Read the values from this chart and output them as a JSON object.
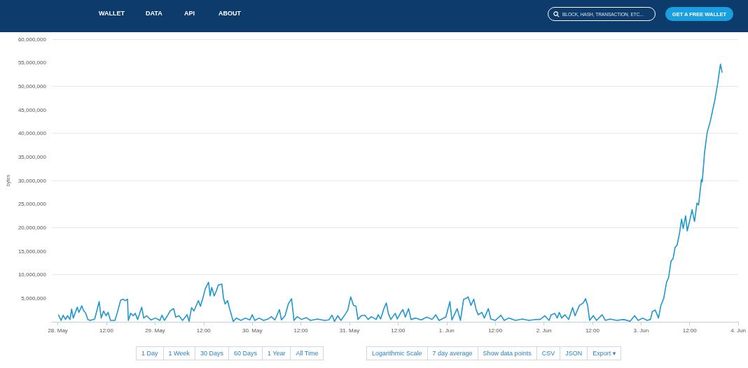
{
  "chart_data": {
    "type": "line",
    "ylabel": "bytes",
    "x": [
      "--05-28T00:12",
      "--05-28T00:48",
      "--05-28T01:18",
      "--05-28T01:54",
      "--05-28T02:24",
      "--05-28T03:00",
      "--05-28T03:24",
      "--05-28T03:48",
      "--05-28T04:48",
      "--05-28T05:12",
      "--05-28T05:54",
      "--05-28T06:18",
      "--05-28T06:54",
      "--05-28T07:24",
      "--05-28T08:00",
      "--05-28T09:06",
      "--05-28T10:12",
      "--05-28T10:42",
      "--05-28T11:18",
      "--05-28T11:54",
      "--05-28T12:24",
      "--05-28T13:00",
      "--05-28T14:06",
      "--05-28T14:42",
      "--05-28T15:30",
      "--05-28T16:06",
      "--05-28T16:36",
      "--05-28T17:12",
      "--05-28T17:24",
      "--05-28T18:00",
      "--05-28T18:36",
      "--05-28T19:06",
      "--05-28T19:42",
      "--05-28T20:42",
      "--05-28T21:12",
      "--05-28T21:54",
      "--05-28T23:00",
      "--05-29T00:06",
      "--05-29T01:12",
      "--05-29T01:42",
      "--05-29T02:18",
      "--05-29T03:12",
      "--05-29T03:42",
      "--05-29T04:36",
      "--05-29T05:06",
      "--05-29T05:54",
      "--05-29T06:48",
      "--05-29T07:54",
      "--05-29T08:24",
      "--05-29T09:00",
      "--05-29T09:36",
      "--05-29T10:42",
      "--05-29T11:12",
      "--05-29T11:48",
      "--05-29T12:24",
      "--05-29T13:12",
      "--05-29T13:36",
      "--05-29T14:00",
      "--05-29T14:36",
      "--05-29T15:06",
      "--05-29T15:36",
      "--05-29T16:30",
      "--05-29T16:54",
      "--05-29T17:18",
      "--05-29T17:54",
      "--05-29T18:24",
      "--05-29T19:00",
      "--05-29T19:18",
      "--05-29T20:06",
      "--05-29T21:12",
      "--05-29T22:18",
      "--05-29T23:24",
      "--05-30T00:00",
      "--05-30T00:36",
      "--05-30T01:42",
      "--05-30T02:48",
      "--05-30T03:54",
      "--05-30T04:42",
      "--05-30T05:36",
      "--05-30T06:42",
      "--05-30T07:12",
      "--05-30T08:06",
      "--05-30T08:54",
      "--05-30T09:42",
      "--05-30T10:18",
      "--05-30T11:06",
      "--05-30T12:12",
      "--05-30T13:18",
      "--05-30T14:24",
      "--05-30T16:06",
      "--05-30T17:48",
      "--05-30T18:54",
      "--05-30T19:42",
      "--05-30T20:18",
      "--05-30T21:06",
      "--05-30T21:54",
      "--05-30T23:06",
      "--05-30T23:36",
      "--05-31T00:18",
      "--05-31T01:00",
      "--05-31T01:36",
      "--05-31T02:06",
      "--05-31T02:54",
      "--05-31T03:48",
      "--05-31T04:36",
      "--05-31T05:24",
      "--05-31T06:36",
      "--05-31T07:06",
      "--05-31T07:42",
      "--05-31T08:30",
      "--05-31T09:06",
      "--05-31T09:36",
      "--05-31T10:12",
      "--05-31T11:18",
      "--05-31T11:48",
      "--05-31T12:42",
      "--05-31T13:12",
      "--05-31T13:48",
      "--05-31T14:36",
      "--05-31T15:12",
      "--05-31T16:18",
      "--05-31T17:42",
      "--05-31T19:06",
      "--05-31T20:24",
      "--05-31T21:18",
      "--05-31T22:06",
      "--05-31T23:48",
      "--06-01T00:48",
      "--06-01T01:18",
      "--06-01T02:36",
      "--06-01T03:24",
      "--06-01T04:12",
      "--06-01T04:54",
      "--06-01T05:18",
      "--06-01T06:00",
      "--06-01T06:42",
      "--06-01T07:18",
      "--06-01T07:48",
      "--06-01T08:42",
      "--06-01T09:18",
      "--06-01T10:18",
      "--06-01T10:54",
      "--06-01T12:00",
      "--06-01T13:24",
      "--06-01T14:12",
      "--06-01T15:18",
      "--06-01T17:00",
      "--06-01T18:42",
      "--06-01T20:18",
      "--06-01T22:00",
      "--06-01T23:06",
      "--06-02T00:12",
      "--06-02T01:18",
      "--06-02T01:48",
      "--06-02T02:42",
      "--06-02T03:18",
      "--06-02T03:48",
      "--06-02T04:24",
      "--06-02T05:12",
      "--06-02T06:06",
      "--06-02T07:06",
      "--06-02T07:42",
      "--06-02T08:48",
      "--06-02T09:42",
      "--06-02T10:18",
      "--06-02T10:48",
      "--06-02T11:18",
      "--06-02T12:12",
      "--06-02T13:00",
      "--06-02T14:24",
      "--06-02T15:12",
      "--06-02T16:18",
      "--06-02T18:00",
      "--06-02T19:42",
      "--06-02T21:18",
      "--06-02T22:24",
      "--06-02T23:18",
      "--06-03T00:24",
      "--06-03T01:30",
      "--06-03T02:18",
      "--06-03T02:48",
      "--06-03T03:30",
      "--06-03T04:18",
      "--06-03T04:54",
      "--06-03T05:36",
      "--06-03T06:18",
      "--06-03T06:48",
      "--06-03T07:24",
      "--06-03T07:54",
      "--06-03T08:24",
      "--06-03T08:54",
      "--06-03T09:30",
      "--06-03T10:00",
      "--06-03T10:24",
      "--06-03T11:00",
      "--06-03T11:24",
      "--06-03T12:06",
      "--06-03T12:36",
      "--06-03T13:12",
      "--06-03T13:48",
      "--06-03T14:12",
      "--06-03T14:54",
      "--06-03T15:06",
      "--06-03T15:42",
      "--06-03T16:18",
      "--06-03T17:06",
      "--06-03T17:36",
      "--06-03T18:12",
      "--06-03T18:54",
      "--06-03T19:36",
      "--06-03T20:00"
    ],
    "values": [
      1400000,
      300000,
      1400000,
      500000,
      1300000,
      500000,
      2700000,
      800000,
      3100000,
      2000000,
      3400000,
      2500000,
      1800000,
      500000,
      300000,
      600000,
      4300000,
      800000,
      2300000,
      1300000,
      2000000,
      300000,
      300000,
      2000000,
      4600000,
      4800000,
      4500000,
      4800000,
      300000,
      1800000,
      1300000,
      1800000,
      500000,
      3100000,
      800000,
      1300000,
      400000,
      800000,
      300000,
      1400000,
      300000,
      1500000,
      2300000,
      2800000,
      1000000,
      1300000,
      300000,
      1500000,
      100000,
      3000000,
      2300000,
      4500000,
      3300000,
      5000000,
      7000000,
      8400000,
      5500000,
      7300000,
      5500000,
      6500000,
      7800000,
      8000000,
      5000000,
      3800000,
      4500000,
      2800000,
      1000000,
      100000,
      800000,
      300000,
      800000,
      400000,
      1500000,
      300000,
      800000,
      300000,
      600000,
      1100000,
      400000,
      2600000,
      400000,
      1300000,
      3800000,
      4900000,
      300000,
      1100000,
      500000,
      900000,
      300000,
      600000,
      300000,
      400000,
      1400000,
      100000,
      1300000,
      300000,
      1800000,
      2500000,
      5300000,
      3500000,
      3300000,
      500000,
      1300000,
      1400000,
      500000,
      1100000,
      500000,
      1500000,
      600000,
      2800000,
      4000000,
      1800000,
      500000,
      1800000,
      600000,
      2000000,
      2600000,
      1000000,
      2800000,
      500000,
      800000,
      400000,
      1000000,
      500000,
      1500000,
      300000,
      1000000,
      4300000,
      400000,
      2800000,
      300000,
      4800000,
      5000000,
      5300000,
      3500000,
      4800000,
      2500000,
      1500000,
      2000000,
      800000,
      2800000,
      600000,
      300000,
      1400000,
      300000,
      800000,
      300000,
      600000,
      300000,
      500000,
      500000,
      1300000,
      300000,
      1500000,
      1800000,
      800000,
      2000000,
      800000,
      1500000,
      500000,
      3000000,
      1300000,
      3500000,
      4000000,
      4900000,
      3500000,
      300000,
      1300000,
      300000,
      1500000,
      300000,
      600000,
      300000,
      500000,
      100000,
      1300000,
      300000,
      800000,
      300000,
      500000,
      2200000,
      2500000,
      800000,
      3500000,
      5000000,
      8400000,
      9400000,
      12900000,
      13400000,
      15800000,
      16300000,
      18800000,
      21800000,
      19800000,
      22500000,
      19300000,
      21800000,
      23800000,
      21300000,
      25200000,
      24800000,
      30200000,
      29700000,
      36100000,
      40100000,
      42600000,
      44600000,
      47000000,
      50500000,
      54700000,
      53000000
    ],
    "color": "#1f97cf",
    "marker": "none",
    "line_style": "solid",
    "grid": "y",
    "xlim": [
      "--05-27T22:30",
      "--06-04T00:00"
    ],
    "xticks": [
      {
        "value": "--05-28",
        "label": "28. May"
      },
      {
        "value": "--05-28T12:00",
        "label": "12:00"
      },
      {
        "value": "--05-29",
        "label": "29. May"
      },
      {
        "value": "--05-29T12:00",
        "label": "12:00"
      },
      {
        "value": "--05-30",
        "label": "30. May"
      },
      {
        "value": "--05-30T12:00",
        "label": "12:00"
      },
      {
        "value": "--05-31",
        "label": "31. May"
      },
      {
        "value": "--05-31T12:00",
        "label": "12:00"
      },
      {
        "value": "--06-01",
        "label": "1. Jun"
      },
      {
        "value": "--06-01T12:00",
        "label": "12:00"
      },
      {
        "value": "--06-02",
        "label": "2. Jun"
      },
      {
        "value": "--06-02T12:00",
        "label": "12:00"
      },
      {
        "value": "--06-03",
        "label": "3. Jun"
      },
      {
        "value": "--06-03T12:00",
        "label": "12:00"
      },
      {
        "value": "--06-04",
        "label": "4. Jun"
      }
    ],
    "ylim": [
      0,
      60000000
    ],
    "yticks": [
      {
        "value": 0,
        "label": null
      },
      {
        "value": 5000000,
        "label": "5,000,000"
      },
      {
        "value": 10000000,
        "label": "10,000,000"
      },
      {
        "value": 15000000,
        "label": "15,000,000"
      },
      {
        "value": 20000000,
        "label": "20,000,000"
      },
      {
        "value": 25000000,
        "label": "25,000,000"
      },
      {
        "value": 30000000,
        "label": "30,000,000"
      },
      {
        "value": 35000000,
        "label": "35,000,000"
      },
      {
        "value": 40000000,
        "label": "40,000,000"
      },
      {
        "value": 45000000,
        "label": "45,000,000"
      },
      {
        "value": 50000000,
        "label": "50,000,000"
      },
      {
        "value": 55000000,
        "label": "55,000,000"
      },
      {
        "value": 60000000,
        "label": "60,000,000"
      }
    ],
    "annotations": [
      "WALLET",
      "DATA",
      "API",
      "ABOUT",
      "BLOCK, HASH, TRANSACTION, ETC...",
      "GET A FREE WALLET",
      "1 Day",
      "1 Week",
      "30 Days",
      "60 Days",
      "1 Year",
      "All Time",
      "Logarithmic Scale",
      "7 day average",
      "Show data points",
      "CSV",
      "JSON",
      "Export ▾"
    ]
  }
}
